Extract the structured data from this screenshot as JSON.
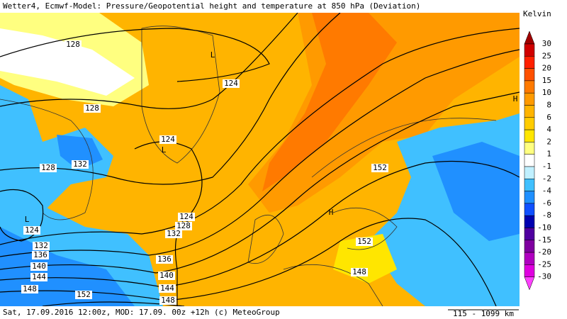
{
  "header": {
    "title": "Wetter4, Ecmwf-Model: Pressure/Geopotential height and temperature at 850 hPa (Deviation)"
  },
  "footer": {
    "run": "Sat, 17.09.2016 12:00z, MOD: 17.09. 00z +12h (c) MeteoGroup",
    "scale": "115 - 1099 km"
  },
  "colorbar": {
    "unit": "Kelvin",
    "labels": [
      "30",
      "25",
      "20",
      "15",
      "10",
      "8",
      "6",
      "4",
      "2",
      "1",
      "-1",
      "-2",
      "-4",
      "-6",
      "-8",
      "-10",
      "-15",
      "-20",
      "-25",
      "-30"
    ],
    "colors": [
      "#a00000",
      "#d00000",
      "#ff2000",
      "#ff5000",
      "#ff7a00",
      "#ff9a00",
      "#ffb400",
      "#ffcc00",
      "#ffe600",
      "#ffff80",
      "#ffffff",
      "#c0f0ff",
      "#40c0ff",
      "#2090ff",
      "#1050ff",
      "#0000b0",
      "#5000a0",
      "#8000a0",
      "#b000c0",
      "#e000e0",
      "#ff40ff"
    ]
  },
  "map": {
    "contour_labels": [
      "128",
      "124",
      "128",
      "124",
      "132",
      "128",
      "124",
      "128",
      "132",
      "124",
      "132",
      "136",
      "136",
      "140",
      "140",
      "144",
      "144",
      "148",
      "148",
      "152",
      "152",
      "152",
      "148"
    ],
    "pressure_centers": [
      "L",
      "L",
      "L",
      "H",
      "H"
    ]
  }
}
